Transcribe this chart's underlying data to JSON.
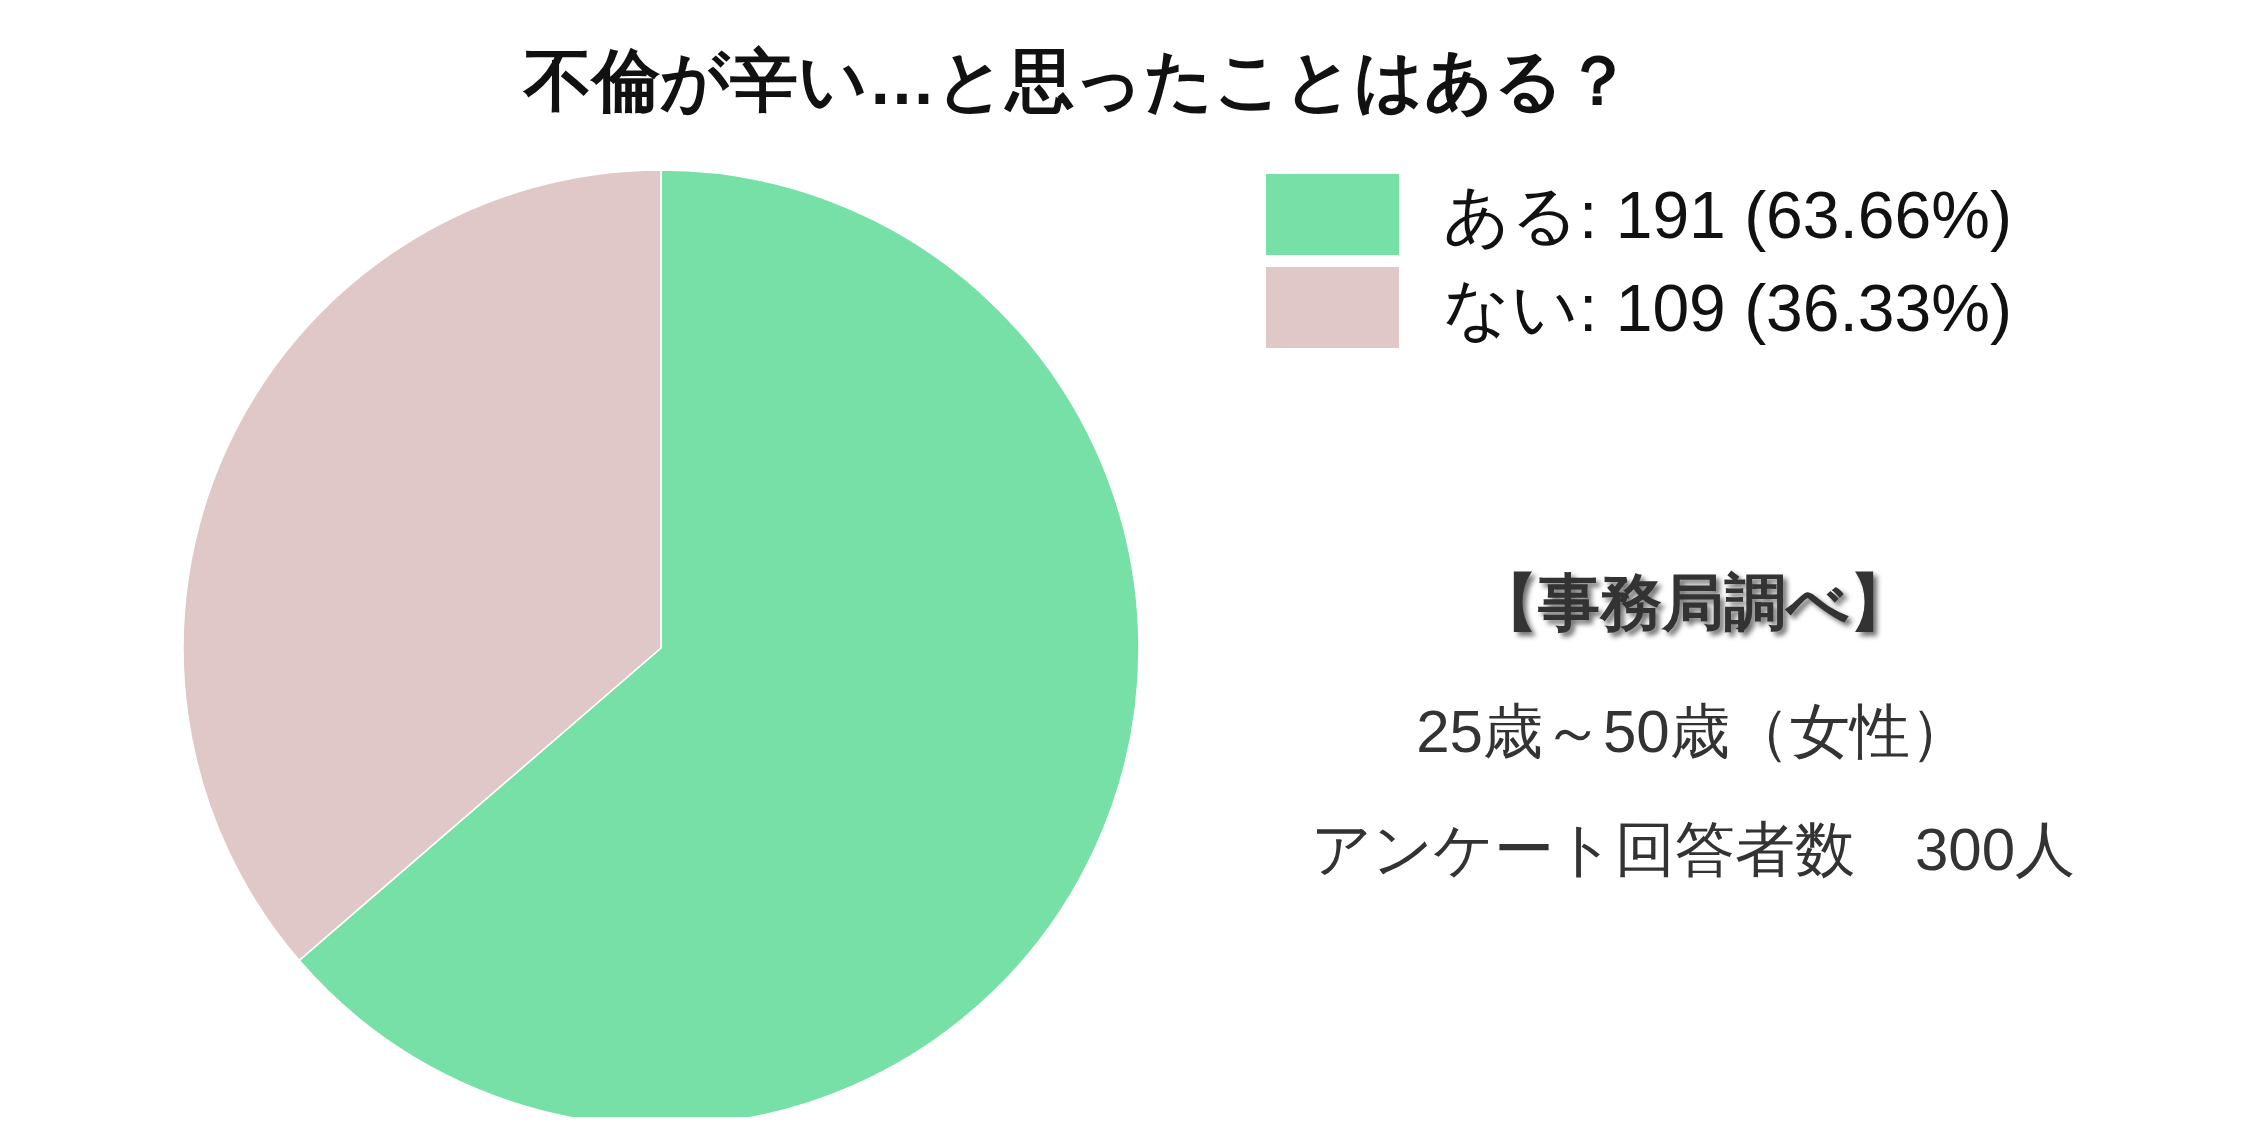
{
  "chart_data": {
    "type": "pie",
    "title": "不倫が辛い…と思ったことはある？",
    "categories": [
      "ある: 191 (63.66%)",
      "ない: 109 (36.33%)"
    ],
    "values": [
      191,
      109
    ],
    "colors": [
      "#76e0a6",
      "#e0c8c8"
    ],
    "legend": "top right",
    "annotations": [
      "【事務局調べ】",
      "25歳～50歳（女性）",
      "アンケート回答者数　300人"
    ]
  }
}
